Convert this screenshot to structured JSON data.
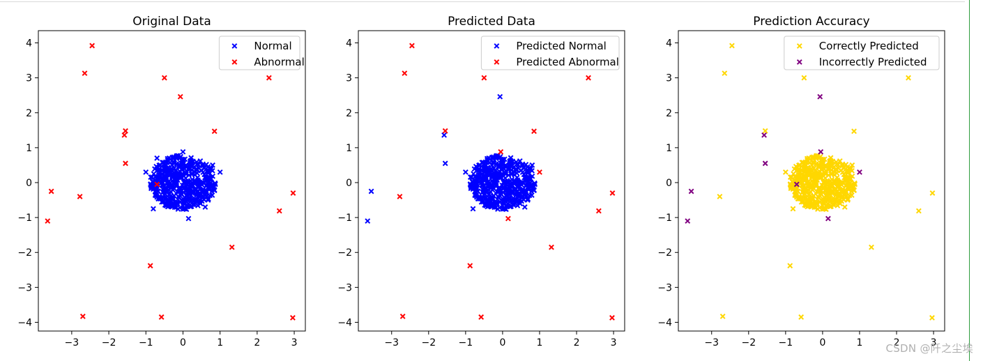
{
  "watermark": "CSDN @阡之尘埃",
  "colors": {
    "normal": "#0000ff",
    "abnormal": "#ff0000",
    "correct": "#ffd700",
    "incorrect": "#800080"
  },
  "chart_data": [
    {
      "type": "scatter",
      "title": "Original Data",
      "xlim": [
        -3.9,
        3.3
      ],
      "ylim": [
        -4.25,
        4.35
      ],
      "xticks": [
        -3,
        -2,
        -1,
        0,
        1,
        2,
        3
      ],
      "yticks": [
        -4,
        -3,
        -2,
        -1,
        0,
        1,
        2,
        3,
        4
      ],
      "legend": "top-right",
      "series": [
        {
          "name": "Normal",
          "color": "#0000ff",
          "cluster": {
            "center": [
              0,
              0
            ],
            "radius": 0.85,
            "count": 500,
            "seed": 11
          },
          "points": [
            [
              -1.0,
              0.3
            ],
            [
              -0.8,
              -0.75
            ],
            [
              0.15,
              -1.03
            ],
            [
              1.0,
              0.3
            ],
            [
              0.8,
              0.5
            ],
            [
              0.0,
              0.88
            ],
            [
              -0.7,
              0.7
            ],
            [
              0.6,
              -0.7
            ]
          ]
        },
        {
          "name": "Abnormal",
          "color": "#ff0000",
          "points": [
            [
              -2.45,
              3.92
            ],
            [
              -2.65,
              3.13
            ],
            [
              -0.5,
              3.0
            ],
            [
              2.32,
              3.0
            ],
            [
              -0.07,
              2.46
            ],
            [
              -1.55,
              1.48
            ],
            [
              -1.58,
              1.36
            ],
            [
              0.85,
              1.47
            ],
            [
              -1.55,
              0.55
            ],
            [
              -3.55,
              -0.25
            ],
            [
              -2.78,
              -0.4
            ],
            [
              -0.7,
              -0.05
            ],
            [
              2.97,
              -0.3
            ],
            [
              -3.65,
              -1.1
            ],
            [
              2.6,
              -0.81
            ],
            [
              1.32,
              -1.85
            ],
            [
              -0.88,
              -2.38
            ],
            [
              -2.7,
              -3.83
            ],
            [
              -0.58,
              -3.85
            ],
            [
              2.96,
              -3.87
            ]
          ]
        }
      ]
    },
    {
      "type": "scatter",
      "title": "Predicted Data",
      "xlim": [
        -3.9,
        3.3
      ],
      "ylim": [
        -4.25,
        4.35
      ],
      "xticks": [
        -3,
        -2,
        -1,
        0,
        1,
        2,
        3
      ],
      "yticks": [
        -4,
        -3,
        -2,
        -1,
        0,
        1,
        2,
        3,
        4
      ],
      "legend": "top-right",
      "series": [
        {
          "name": "Predicted Normal",
          "color": "#0000ff",
          "cluster": {
            "center": [
              0,
              0
            ],
            "radius": 0.85,
            "count": 500,
            "seed": 11
          },
          "points": [
            [
              -1.0,
              0.3
            ],
            [
              -0.8,
              -0.75
            ],
            [
              -0.07,
              2.46
            ],
            [
              -1.58,
              1.36
            ],
            [
              -1.55,
              0.55
            ],
            [
              -3.55,
              -0.25
            ],
            [
              -3.65,
              -1.1
            ],
            [
              -0.7,
              -0.05
            ],
            [
              0.6,
              -0.7
            ],
            [
              0.8,
              0.5
            ]
          ]
        },
        {
          "name": "Predicted Abnormal",
          "color": "#ff0000",
          "points": [
            [
              -2.45,
              3.92
            ],
            [
              -2.65,
              3.13
            ],
            [
              -0.5,
              3.0
            ],
            [
              2.32,
              3.0
            ],
            [
              -1.55,
              1.48
            ],
            [
              0.85,
              1.47
            ],
            [
              -0.05,
              0.88
            ],
            [
              1.0,
              0.3
            ],
            [
              -2.78,
              -0.4
            ],
            [
              2.97,
              -0.3
            ],
            [
              0.15,
              -1.03
            ],
            [
              2.6,
              -0.81
            ],
            [
              1.32,
              -1.85
            ],
            [
              -0.88,
              -2.38
            ],
            [
              -2.7,
              -3.83
            ],
            [
              -0.58,
              -3.85
            ],
            [
              2.96,
              -3.87
            ]
          ]
        }
      ]
    },
    {
      "type": "scatter",
      "title": "Prediction Accuracy",
      "xlim": [
        -3.9,
        3.3
      ],
      "ylim": [
        -4.25,
        4.35
      ],
      "xticks": [
        -3,
        -2,
        -1,
        0,
        1,
        2,
        3
      ],
      "yticks": [
        -4,
        -3,
        -2,
        -1,
        0,
        1,
        2,
        3,
        4
      ],
      "legend": "top-right",
      "series": [
        {
          "name": "Correctly Predicted",
          "color": "#ffd700",
          "cluster": {
            "center": [
              0,
              0
            ],
            "radius": 0.85,
            "count": 500,
            "seed": 11
          },
          "points": [
            [
              -2.45,
              3.92
            ],
            [
              -2.65,
              3.13
            ],
            [
              -0.5,
              3.0
            ],
            [
              2.32,
              3.0
            ],
            [
              -1.55,
              1.48
            ],
            [
              0.85,
              1.47
            ],
            [
              -2.78,
              -0.4
            ],
            [
              2.97,
              -0.3
            ],
            [
              2.6,
              -0.81
            ],
            [
              1.32,
              -1.85
            ],
            [
              -0.88,
              -2.38
            ],
            [
              -2.7,
              -3.83
            ],
            [
              -0.58,
              -3.85
            ],
            [
              2.96,
              -3.87
            ],
            [
              -1.0,
              0.3
            ],
            [
              -0.8,
              -0.75
            ],
            [
              0.8,
              0.5
            ],
            [
              0.6,
              -0.7
            ]
          ]
        },
        {
          "name": "Incorrectly Predicted",
          "color": "#800080",
          "points": [
            [
              -0.07,
              2.46
            ],
            [
              -1.58,
              1.36
            ],
            [
              -1.55,
              0.55
            ],
            [
              -3.55,
              -0.25
            ],
            [
              -3.65,
              -1.1
            ],
            [
              -0.7,
              -0.05
            ],
            [
              -0.05,
              0.88
            ],
            [
              1.0,
              0.3
            ],
            [
              0.15,
              -1.03
            ]
          ]
        }
      ]
    }
  ]
}
